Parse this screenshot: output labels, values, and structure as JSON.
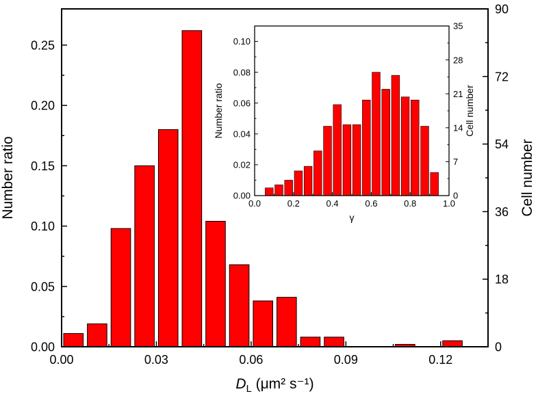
{
  "chart_data": [
    {
      "type": "bar",
      "xlabel_italic": "D",
      "xlabel_sub": "L",
      "xlabel_unit": "(μm² s⁻¹)",
      "ylabel": "Number ratio",
      "y2label": "Cell number",
      "xlim": [
        0,
        0.135
      ],
      "ylim": [
        0,
        0.28
      ],
      "y2lim": [
        0,
        90
      ],
      "xticks": [
        0.0,
        0.03,
        0.06,
        0.09,
        0.12
      ],
      "xtick_labels": [
        "0.00",
        "0.03",
        "0.06",
        "0.09",
        "0.12"
      ],
      "yticks": [
        0.0,
        0.05,
        0.1,
        0.15,
        0.2,
        0.25
      ],
      "ytick_labels": [
        "0.00",
        "0.05",
        "0.10",
        "0.15",
        "0.20",
        "0.25"
      ],
      "y2ticks": [
        0,
        18,
        36,
        54,
        72,
        90
      ],
      "y2tick_labels": [
        "0",
        "18",
        "36",
        "54",
        "72",
        "90"
      ],
      "bin_width": 0.0075,
      "bar_centers": [
        0.00375,
        0.01125,
        0.01875,
        0.02625,
        0.03375,
        0.04125,
        0.04875,
        0.05625,
        0.06375,
        0.07125,
        0.07875,
        0.08625,
        0.09375,
        0.10125,
        0.10875,
        0.11625,
        0.12375
      ],
      "values": [
        0.011,
        0.019,
        0.098,
        0.15,
        0.18,
        0.262,
        0.104,
        0.068,
        0.038,
        0.041,
        0.008,
        0.008,
        0.0,
        0.0,
        0.002,
        0.0,
        0.005
      ],
      "bar_color": "#ff0000"
    },
    {
      "type": "bar",
      "inset": true,
      "xlabel": "γ",
      "ylabel": "Number ratio",
      "y2label": "Cell number",
      "xlim": [
        0,
        1.0
      ],
      "ylim": [
        0,
        0.11
      ],
      "y2lim": [
        0,
        35
      ],
      "xticks": [
        0.0,
        0.2,
        0.4,
        0.6,
        0.8,
        1.0
      ],
      "xtick_labels": [
        "0.0",
        "0.2",
        "0.4",
        "0.6",
        "0.8",
        "1.0"
      ],
      "yticks": [
        0.0,
        0.02,
        0.04,
        0.06,
        0.08,
        0.1
      ],
      "ytick_labels": [
        "0.00",
        "0.02",
        "0.04",
        "0.06",
        "0.08",
        "0.10"
      ],
      "y2ticks": [
        0,
        7,
        14,
        21,
        28,
        35
      ],
      "y2tick_labels": [
        "0",
        "7",
        "14",
        "21",
        "28",
        "35"
      ],
      "bin_width": 0.05,
      "bar_centers": [
        0.075,
        0.125,
        0.175,
        0.225,
        0.275,
        0.325,
        0.375,
        0.425,
        0.475,
        0.525,
        0.575,
        0.625,
        0.675,
        0.725,
        0.775,
        0.825,
        0.875,
        0.925
      ],
      "values": [
        0.005,
        0.007,
        0.01,
        0.016,
        0.019,
        0.029,
        0.045,
        0.059,
        0.046,
        0.046,
        0.062,
        0.08,
        0.069,
        0.078,
        0.064,
        0.062,
        0.045,
        0.015
      ],
      "bar_color": "#ff0000"
    }
  ]
}
